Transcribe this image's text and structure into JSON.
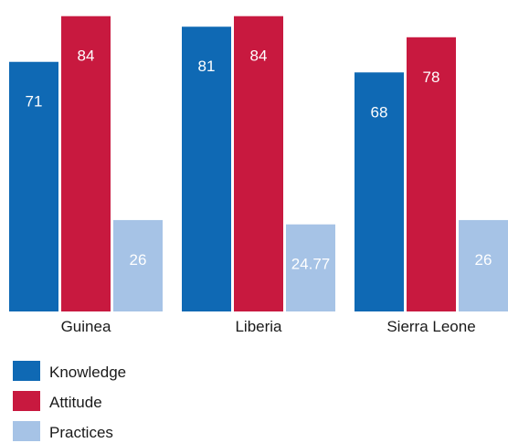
{
  "chart_data": {
    "type": "bar",
    "title": "",
    "xlabel": "",
    "ylabel": "",
    "ylim": [
      0,
      86
    ],
    "grid": false,
    "legend_position": "bottom-left",
    "categories": [
      "Guinea",
      "Liberia",
      "Sierra Leone"
    ],
    "series": [
      {
        "name": "Knowledge",
        "color": "#0f69b4",
        "values": [
          71,
          81,
          68
        ],
        "labels": [
          "71",
          "81",
          "68"
        ]
      },
      {
        "name": "Attitude",
        "color": "#c8193f",
        "values": [
          84,
          84,
          78
        ],
        "labels": [
          "84",
          "84",
          "78"
        ]
      },
      {
        "name": "Practices",
        "color": "#a6c3e6",
        "values": [
          26,
          24.77,
          26
        ],
        "labels": [
          "26",
          "24.77",
          "26"
        ]
      }
    ]
  }
}
